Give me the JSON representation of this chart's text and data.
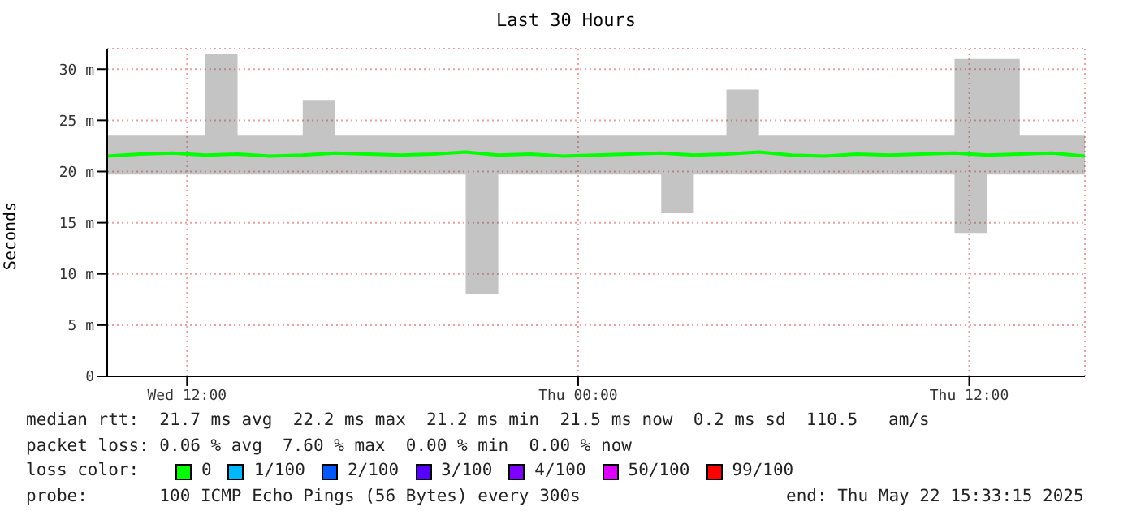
{
  "chart_data": {
    "type": "line",
    "title": "Last 30 Hours",
    "ylabel": "Seconds",
    "x": [
      "2025-05-21T09:33",
      "2025-05-21T10:33",
      "2025-05-21T11:33",
      "2025-05-21T12:33",
      "2025-05-21T13:33",
      "2025-05-21T14:33",
      "2025-05-21T15:33",
      "2025-05-21T16:33",
      "2025-05-21T17:33",
      "2025-05-21T18:33",
      "2025-05-21T19:33",
      "2025-05-21T20:33",
      "2025-05-21T21:33",
      "2025-05-21T22:33",
      "2025-05-21T23:33",
      "2025-05-22T00:33",
      "2025-05-22T01:33",
      "2025-05-22T02:33",
      "2025-05-22T03:33",
      "2025-05-22T04:33",
      "2025-05-22T05:33",
      "2025-05-22T06:33",
      "2025-05-22T07:33",
      "2025-05-22T08:33",
      "2025-05-22T09:33",
      "2025-05-22T10:33",
      "2025-05-22T11:33",
      "2025-05-22T12:33",
      "2025-05-22T13:33",
      "2025-05-22T14:33",
      "2025-05-22T15:33"
    ],
    "series": [
      {
        "color": "#00ff00",
        "values": [
          21.5,
          21.7,
          21.8,
          21.6,
          21.7,
          21.5,
          21.6,
          21.8,
          21.7,
          21.6,
          21.7,
          21.9,
          21.6,
          21.7,
          21.5,
          21.6,
          21.7,
          21.8,
          21.6,
          21.7,
          21.9,
          21.6,
          21.5,
          21.7,
          21.6,
          21.7,
          21.8,
          21.6,
          21.7,
          21.8,
          21.5
        ],
        "lower": [
          19.7,
          19.7,
          19.7,
          19.7,
          19.7,
          19.7,
          19.7,
          19.7,
          19.7,
          19.7,
          19.7,
          8,
          19.7,
          19.7,
          19.7,
          19.7,
          19.7,
          16,
          19.7,
          19.7,
          19.7,
          19.7,
          19.7,
          19.7,
          19.7,
          19.7,
          14,
          19.7,
          19.7,
          19.7,
          19.7
        ],
        "upper": [
          23.5,
          23.5,
          23.5,
          31.5,
          23.5,
          23.5,
          27,
          23.5,
          23.5,
          23.5,
          23.5,
          23.5,
          23.5,
          23.5,
          23.5,
          23.5,
          23.5,
          23.5,
          23.5,
          28,
          23.5,
          23.5,
          23.5,
          23.5,
          23.5,
          23.5,
          31,
          31,
          23.5,
          23.5,
          23.5
        ]
      }
    ],
    "xlim": [
      "2025-05-21T09:33",
      "2025-05-22T15:33"
    ],
    "xticks": [
      {
        "value": "2025-05-21T12:00",
        "label": "Wed 12:00"
      },
      {
        "value": "2025-05-22T00:00",
        "label": "Thu 00:00"
      },
      {
        "value": "2025-05-22T12:00",
        "label": "Thu 12:00"
      }
    ],
    "ylim": [
      0,
      32
    ],
    "yticks": [
      0,
      {
        "value": 5,
        "label": "5 m"
      },
      {
        "value": 10,
        "label": "10 m"
      },
      {
        "value": 15,
        "label": "15 m"
      },
      {
        "value": 20,
        "label": "20 m"
      },
      {
        "value": 25,
        "label": "25 m"
      },
      {
        "value": 30,
        "label": "30 m"
      }
    ],
    "grid": true,
    "marker": "none",
    "line_style": "solid",
    "annotations": [
      "median rtt:  21.7 ms avg  22.2 ms max  21.2 ms min  21.5 ms now  0.2 ms sd  110.5   am/s",
      "packet loss: 0.06 % avg  7.60 % max  0.00 % min  0.00 % now",
      "loss color:",
      "0",
      "1/100",
      "2/100",
      "3/100",
      "4/100",
      "50/100",
      "99/100",
      "probe:       100 ICMP Echo Pings (56 Bytes) every 300s",
      "end: Thu May 22 15:33:15 2025"
    ]
  }
}
